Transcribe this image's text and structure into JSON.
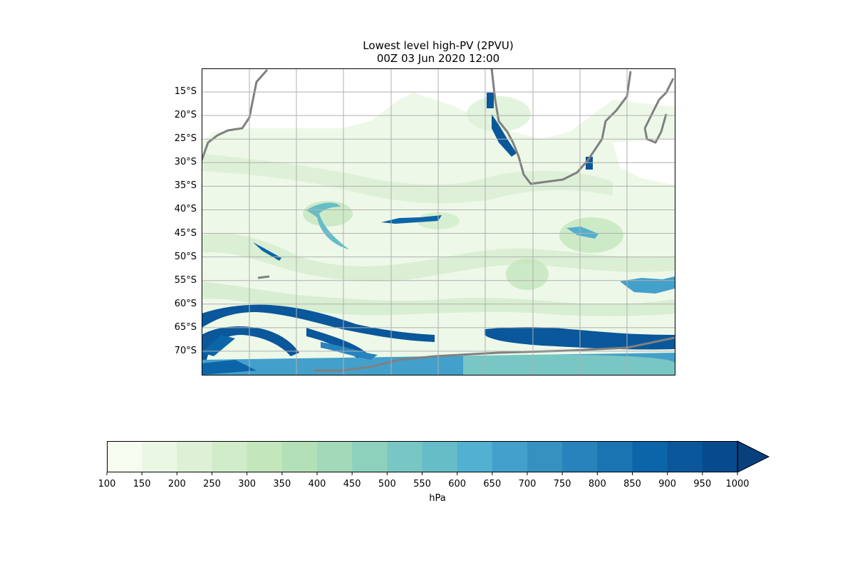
{
  "figure": {
    "title_line1": "Lowest level high-PV (2PVU)",
    "title_line2": "00Z 03 Jun 2020 12:00"
  },
  "map": {
    "lat_labels": [
      "15°S",
      "20°S",
      "25°S",
      "30°S",
      "35°S",
      "40°S",
      "45°S",
      "50°S",
      "55°S",
      "60°S",
      "65°S",
      "70°S"
    ],
    "lat_values": [
      -15,
      -20,
      -25,
      -30,
      -35,
      -40,
      -45,
      -50,
      -55,
      -60,
      -65,
      -70
    ],
    "lat_range": [
      -75,
      -10
    ],
    "coastline_color": "#808080",
    "gridlines": true
  },
  "colorbar": {
    "label": "hPa",
    "ticks": [
      "100",
      "150",
      "200",
      "250",
      "300",
      "350",
      "400",
      "450",
      "500",
      "550",
      "600",
      "650",
      "700",
      "750",
      "800",
      "850",
      "900",
      "950",
      "1000"
    ],
    "tick_values": [
      100,
      150,
      200,
      250,
      300,
      350,
      400,
      450,
      500,
      550,
      600,
      650,
      700,
      750,
      800,
      850,
      900,
      950,
      1000
    ],
    "colors": [
      "#f7fcf0",
      "#e9f7e3",
      "#dcf1d6",
      "#d0ecc9",
      "#c4e6bd",
      "#b3e0b6",
      "#a3d9b9",
      "#8dd1bd",
      "#78c7c5",
      "#66bdc8",
      "#52b0d0",
      "#43a0cb",
      "#3690c0",
      "#2883bd",
      "#1b74b2",
      "#0b65a8",
      "#0a579b",
      "#084a8e",
      "#08407e"
    ],
    "extend": "max"
  }
}
